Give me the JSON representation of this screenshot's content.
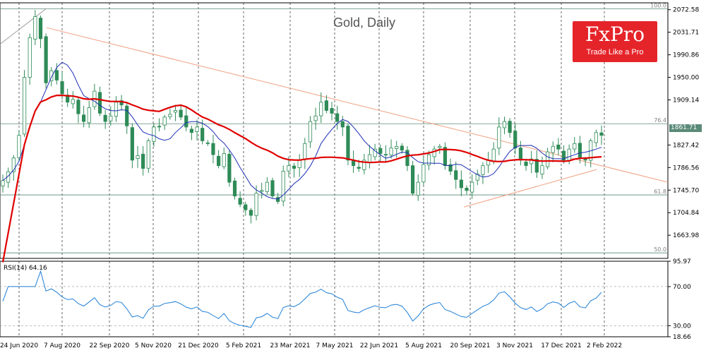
{
  "chart_data": [
    {
      "type": "candlestick",
      "title": "Gold, Daily",
      "x_tick_labels": [
        "24 Jun 2020",
        "7 Aug 2020",
        "22 Sep 2020",
        "5 Nov 2020",
        "21 Dec 2020",
        "5 Feb 2021",
        "23 Mar 2021",
        "7 May 2021",
        "22 Jun 2021",
        "5 Aug 2021",
        "20 Sep 2021",
        "3 Nov 2021",
        "17 Dec 2021",
        "2 Feb 2022"
      ],
      "y_tick_labels": [
        "2072.58",
        "2031.71",
        "1990.86",
        "1950.00",
        "1909.14",
        "1827.42",
        "1786.56",
        "1745.70",
        "1704.84",
        "1663.98"
      ],
      "ylim": [
        1622,
        2085
      ],
      "last_price_label": "1861.71",
      "fibonacci_levels": [
        {
          "label": "100.0",
          "price": 2074
        },
        {
          "label": "76.4",
          "price": 1866
        },
        {
          "label": "61.8",
          "price": 1737
        },
        {
          "label": "50.0",
          "price": 1632
        }
      ],
      "series": [
        {
          "name": "Gold",
          "type": "candlestick",
          "color_up": "#2e8b57",
          "color_down": "#2e8b57",
          "close": [
            1763,
            1779,
            1804,
            1845,
            1950,
            2022,
            2060,
            2020,
            1940,
            1962,
            1945,
            1920,
            1905,
            1910,
            1884,
            1870,
            1895,
            1925,
            1885,
            1870,
            1880,
            1905,
            1900,
            1862,
            1800,
            1808,
            1785,
            1835,
            1860,
            1860,
            1878,
            1883,
            1890,
            1878,
            1860,
            1850,
            1860,
            1835,
            1830,
            1810,
            1790,
            1812,
            1760,
            1735,
            1720,
            1710,
            1700,
            1740,
            1745,
            1760,
            1735,
            1725,
            1780,
            1790,
            1785,
            1800,
            1830,
            1870,
            1880,
            1905,
            1890,
            1885,
            1870,
            1860,
            1800,
            1790,
            1785,
            1800,
            1810,
            1820,
            1812,
            1810,
            1822,
            1825,
            1818,
            1790,
            1740,
            1760,
            1792,
            1810,
            1820,
            1825,
            1790,
            1780,
            1765,
            1750,
            1745,
            1760,
            1775,
            1790,
            1800,
            1820,
            1860,
            1870,
            1850,
            1822,
            1800,
            1790,
            1802,
            1778,
            1790,
            1815,
            1825,
            1820,
            1800,
            1820,
            1830,
            1805,
            1800,
            1835,
            1850,
            1845
          ]
        },
        {
          "name": "MA slow",
          "color": "#e00000"
        },
        {
          "name": "MA fast",
          "color": "#1c2fb5"
        }
      ],
      "grid": true
    },
    {
      "type": "line",
      "title": "RSI(14) 64.16",
      "y_tick_labels": [
        "95.97",
        "70.00",
        "30.00",
        "18.66"
      ],
      "ylim": [
        18.66,
        95.97
      ],
      "levels": [
        70,
        30
      ],
      "series": [
        {
          "name": "RSI(14)",
          "color": "#1e7fd6"
        }
      ]
    }
  ],
  "branding": {
    "logo_text": "FxPro",
    "logo_tagline": "Trade Like a Pro"
  }
}
